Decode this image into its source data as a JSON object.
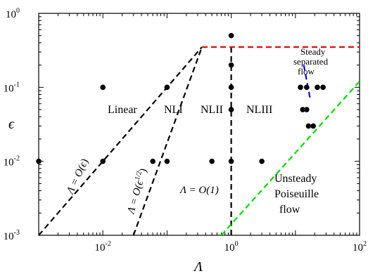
{
  "chart_data": {
    "type": "scatter",
    "x_scale": "log",
    "y_scale": "log",
    "xlabel": "Λ",
    "ylabel": "ϵ",
    "xlim": [
      0.001,
      100
    ],
    "ylim": [
      0.001,
      1
    ],
    "x_ticks": [
      {
        "value": 0.01,
        "base": "10",
        "exp": "-2"
      },
      {
        "value": 1,
        "base": "10",
        "exp": "0"
      },
      {
        "value": 100,
        "base": "10",
        "exp": "2"
      }
    ],
    "y_ticks": [
      {
        "value": 0.001,
        "base": "10",
        "exp": "-3"
      },
      {
        "value": 0.01,
        "base": "10",
        "exp": "-2"
      },
      {
        "value": 0.1,
        "base": "10",
        "exp": "-1"
      },
      {
        "value": 1,
        "base": "10",
        "exp": "0"
      }
    ],
    "points": [
      {
        "x": 0.001,
        "y": 0.01
      },
      {
        "x": 0.01,
        "y": 0.1
      },
      {
        "x": 0.01,
        "y": 0.01
      },
      {
        "x": 0.06,
        "y": 0.01
      },
      {
        "x": 0.1,
        "y": 0.1
      },
      {
        "x": 0.1,
        "y": 0.01
      },
      {
        "x": 0.5,
        "y": 0.01
      },
      {
        "x": 1,
        "y": 0.5
      },
      {
        "x": 1,
        "y": 0.2
      },
      {
        "x": 1,
        "y": 0.1
      },
      {
        "x": 1,
        "y": 0.05
      },
      {
        "x": 1,
        "y": 0.01
      },
      {
        "x": 3,
        "y": 0.01
      },
      {
        "x": 12,
        "y": 0.1
      },
      {
        "x": 13,
        "y": 0.05
      },
      {
        "x": 15,
        "y": 0.1
      },
      {
        "x": 15,
        "y": 0.05
      },
      {
        "x": 16,
        "y": 0.03
      },
      {
        "x": 19,
        "y": 0.03
      },
      {
        "x": 22,
        "y": 0.1
      },
      {
        "x": 27,
        "y": 0.1
      }
    ],
    "lines": [
      {
        "name": "Λ = O(ϵ)",
        "color": "#000000",
        "points": [
          [
            0.001,
            0.001
          ],
          [
            0.35,
            0.35
          ]
        ]
      },
      {
        "name": "Λ = O(ϵ^{1/2})",
        "color": "#000000",
        "points": [
          [
            0.03,
            0.001
          ],
          [
            0.35,
            0.35
          ]
        ]
      },
      {
        "name": "Λ = O(1)",
        "color": "#000000",
        "points": [
          [
            1,
            0.001
          ],
          [
            1,
            0.35
          ]
        ]
      },
      {
        "name": "upper limit",
        "color": "#ff0000",
        "points": [
          [
            0.35,
            0.35
          ],
          [
            100,
            0.35
          ]
        ]
      },
      {
        "name": "separation boundary",
        "color": "#0000ff",
        "points": [
          [
            13.5,
            0.2
          ],
          [
            17,
            0.07
          ]
        ]
      },
      {
        "name": "unsteady boundary",
        "color": "#00dd00",
        "points": [
          [
            0.7,
            0.001
          ],
          [
            100,
            0.12
          ]
        ]
      }
    ],
    "region_labels": [
      "Linear",
      "NLI",
      "NLII",
      "NLIII"
    ],
    "annotations": {
      "steady": [
        "Steady",
        "separated",
        "flow"
      ],
      "unsteady": [
        "Unsteady",
        "Poiseuille",
        "flow"
      ],
      "line_eps": {
        "lead": "Λ = O(",
        "var": "ϵ",
        "tail": ")"
      },
      "line_sqrt": {
        "lead": "Λ = O(",
        "var": "ϵ",
        "sup": "1/2",
        "tail": ")"
      },
      "line_one": "Λ = O(1)"
    }
  }
}
